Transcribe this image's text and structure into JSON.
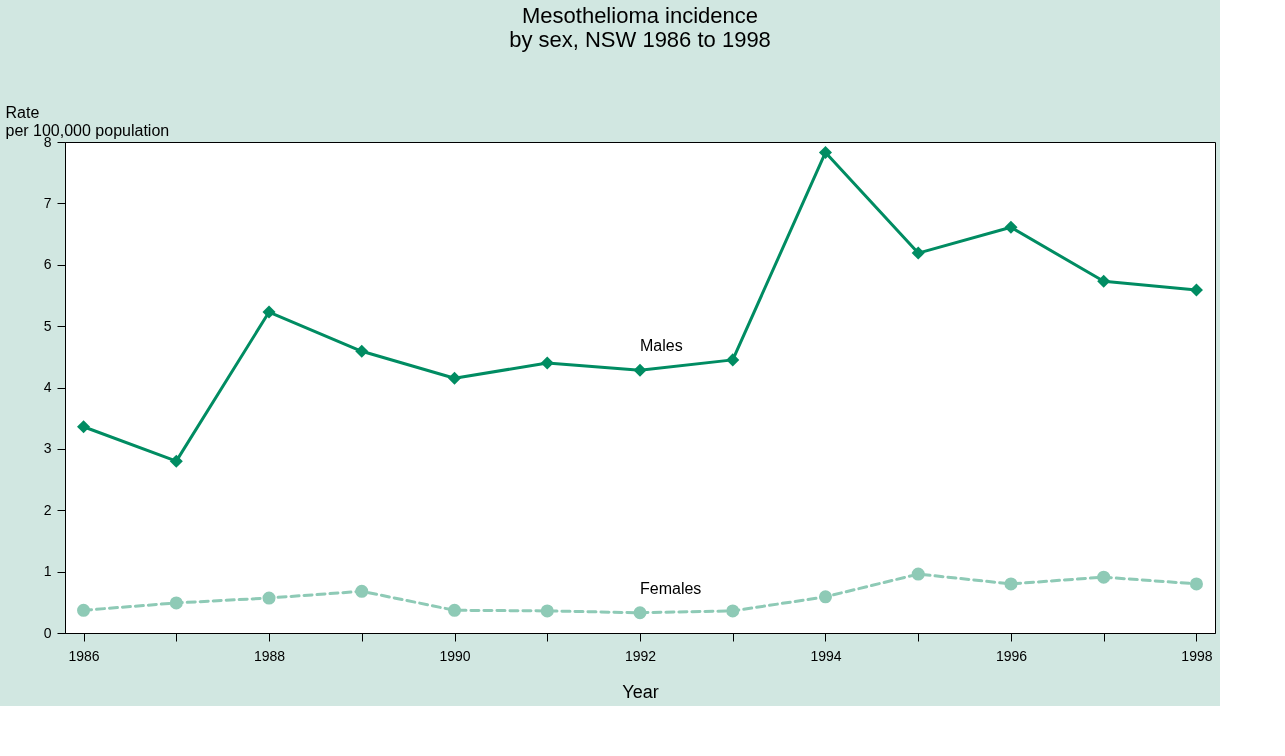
{
  "chart_data": {
    "type": "line",
    "title": "Mesothelioma incidence\nby sex, NSW 1986 to 1998",
    "xlabel": "Year",
    "ylabel": "Rate\nper 100,000 population",
    "x": [
      1986,
      1987,
      1988,
      1989,
      1990,
      1991,
      1992,
      1993,
      1994,
      1995,
      1996,
      1997,
      1998
    ],
    "series": [
      {
        "name": "Males",
        "color": "#008c62",
        "marker": "diamond",
        "line_style": "solid",
        "values": [
          3.36,
          2.8,
          5.23,
          4.59,
          4.15,
          4.4,
          4.28,
          4.45,
          7.83,
          6.19,
          6.61,
          5.73,
          5.59
        ]
      },
      {
        "name": "Females",
        "color": "#8ecab6",
        "marker": "circle",
        "line_style": "dashed",
        "values": [
          0.37,
          0.49,
          0.57,
          0.68,
          0.37,
          0.36,
          0.33,
          0.36,
          0.59,
          0.96,
          0.8,
          0.91,
          0.8
        ]
      }
    ],
    "xlim": [
      1985.8,
      1998.2
    ],
    "xticks": [
      1986,
      {
        "value": 1987,
        "label": null
      },
      1988,
      {
        "value": 1989,
        "label": null
      },
      1990,
      {
        "value": 1991,
        "label": null
      },
      1992,
      {
        "value": 1993,
        "label": null
      },
      1994,
      {
        "value": 1995,
        "label": null
      },
      1996,
      {
        "value": 1997,
        "label": null
      },
      1998
    ],
    "ylim": [
      0,
      8
    ],
    "yticks": [
      0,
      1,
      2,
      3,
      4,
      5,
      6,
      7,
      8
    ],
    "grid": false
  }
}
